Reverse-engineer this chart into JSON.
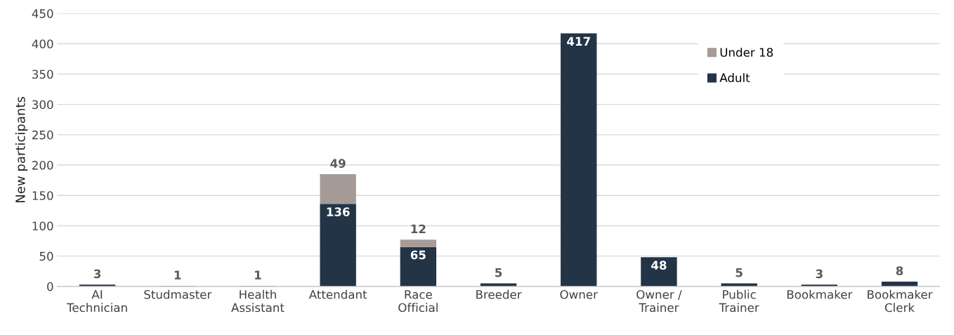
{
  "chart_data": {
    "type": "bar",
    "stacked": true,
    "ylabel": "New participants",
    "categories": [
      "AI\nTechnician",
      "Studmaster",
      "Health\nAssistant",
      "Attendant",
      "Race\nOfficial",
      "Breeder",
      "Owner",
      "Owner /\nTrainer",
      "Public\nTrainer",
      "Bookmaker",
      "Bookmaker\nClerk"
    ],
    "series": [
      {
        "name": "Adult",
        "color": "#243447",
        "values": [
          3,
          1,
          1,
          136,
          65,
          5,
          417,
          48,
          5,
          3,
          8
        ]
      },
      {
        "name": "Under 18",
        "color": "#a69b97",
        "values": [
          null,
          null,
          null,
          49,
          12,
          null,
          null,
          null,
          null,
          null,
          null
        ]
      }
    ],
    "ylim": [
      0,
      450
    ],
    "yticks": [
      0,
      50,
      100,
      150,
      200,
      250,
      300,
      350,
      400,
      450
    ],
    "grid": "y",
    "legend": "top right",
    "data_labels": true
  }
}
